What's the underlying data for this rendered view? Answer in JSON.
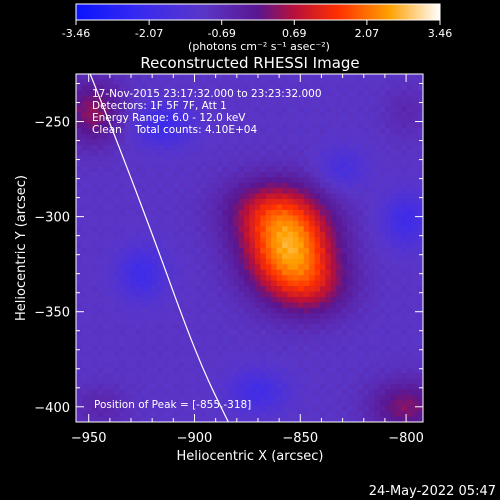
{
  "colorbar": {
    "tick_labels": [
      "-3.46",
      "-2.07",
      "-0.69",
      "0.69",
      "2.07",
      "3.46"
    ],
    "tick_values": [
      -3.46,
      -2.07,
      -0.69,
      0.69,
      2.07,
      3.46
    ],
    "range": [
      -3.46,
      3.46
    ],
    "units_label": "(photons cm⁻² s⁻¹ asec⁻²)"
  },
  "chart_data": {
    "type": "heatmap",
    "title": "Reconstructed RHESSI Image",
    "xlabel": "Heliocentric X (arcsec)",
    "ylabel": "Heliocentric Y (arcsec)",
    "xlim": [
      -956,
      -792
    ],
    "ylim": [
      -408,
      -225
    ],
    "x_ticks": [
      -950,
      -900,
      -850,
      -800
    ],
    "x_tick_labels": [
      "−950",
      "−900",
      "−850",
      "−800"
    ],
    "y_ticks": [
      -250,
      -300,
      -350,
      -400
    ],
    "y_tick_labels": [
      "−250",
      "−300",
      "−350",
      "−400"
    ],
    "annotations": [
      "17-Nov-2015 23:17:32.000 to 23:23:32.000",
      "Detectors: 1F 5F 7F, Att 1",
      "Energy Range: 6.0 - 12.0 keV",
      "Clean    Total counts: 4.10E+04"
    ],
    "peak_label": "Position of Peak = [-855,-318]",
    "peak": [
      -855,
      -318
    ],
    "peak_value": 3.46,
    "sources": [
      {
        "x": -855,
        "y": -318,
        "amp": 3.3,
        "sx": 15,
        "sy": 17
      },
      {
        "x": -864,
        "y": -296,
        "amp": 1.4,
        "sx": 16,
        "sy": 12
      },
      {
        "x": -843,
        "y": -338,
        "amp": 1.0,
        "sx": 13,
        "sy": 11
      }
    ],
    "background_level": -1.0,
    "red_patches": [
      {
        "x": -948,
        "y": -245,
        "amp": 1.4,
        "sx": 10,
        "sy": 12
      },
      {
        "x": -800,
        "y": -400,
        "amp": 1.3,
        "sx": 12,
        "sy": 10
      },
      {
        "x": -945,
        "y": -400,
        "amp": 0.5,
        "sx": 10,
        "sy": 8
      },
      {
        "x": -800,
        "y": -245,
        "amp": 0.4,
        "sx": 8,
        "sy": 10
      }
    ],
    "blue_patches": [
      {
        "x": -915,
        "y": -252,
        "amp": -1.1,
        "sx": 10,
        "sy": 8
      },
      {
        "x": -925,
        "y": -330,
        "amp": -1.0,
        "sx": 8,
        "sy": 10
      },
      {
        "x": -800,
        "y": -302,
        "amp": -1.0,
        "sx": 8,
        "sy": 10
      },
      {
        "x": -870,
        "y": -392,
        "amp": -0.9,
        "sx": 10,
        "sy": 8
      },
      {
        "x": -830,
        "y": -275,
        "amp": -0.7,
        "sx": 8,
        "sy": 8
      }
    ],
    "limb_curve": [
      [
        -950,
        -223
      ],
      [
        -935,
        -265
      ],
      [
        -918,
        -315
      ],
      [
        -905,
        -355
      ],
      [
        -895,
        -383
      ],
      [
        -884,
        -408
      ]
    ],
    "colors": {
      "limb": "#ffffff",
      "background": "#000000",
      "text": "#ffffff"
    }
  },
  "footer": {
    "date": "24-May-2022 05:47"
  }
}
